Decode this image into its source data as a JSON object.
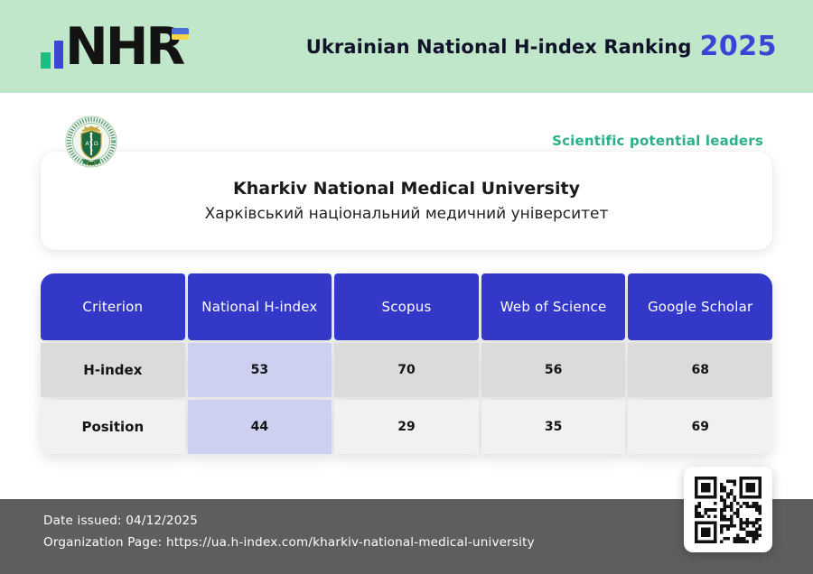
{
  "header": {
    "logo_text": "NHR",
    "title": "Ukrainian National H-index Ranking",
    "year": "2025"
  },
  "badge": "Scientific potential leaders",
  "university": {
    "name_en": "Kharkiv National Medical University",
    "name_uk": "Харківський національний медичний університет"
  },
  "table": {
    "columns": [
      "Criterion",
      "National H-index",
      "Scopus",
      "Web of Science",
      "Google Scholar"
    ],
    "rows": [
      {
        "label": "H-index",
        "values": [
          "53",
          "70",
          "56",
          "68"
        ]
      },
      {
        "label": "Position",
        "values": [
          "44",
          "29",
          "35",
          "69"
        ]
      }
    ]
  },
  "footer": {
    "date": {
      "label": "Date issued:",
      "value": "04/12/2025"
    },
    "org": {
      "label": "Organization Page:",
      "value": "https://ua.h-index.com/kharkiv-national-medical-university"
    }
  },
  "colors": {
    "band_green": "#c1e7ca",
    "accent_blue": "#3338c8",
    "year_blue": "#3a45d6",
    "badge_green": "#2cb187",
    "highlight_lavender": "#cdd0f0",
    "row_gray": "#dbdbdb",
    "row_light": "#f1f1f2",
    "footer_gray": "#5e5e5e",
    "logo_bar_green": "#17bf83"
  }
}
